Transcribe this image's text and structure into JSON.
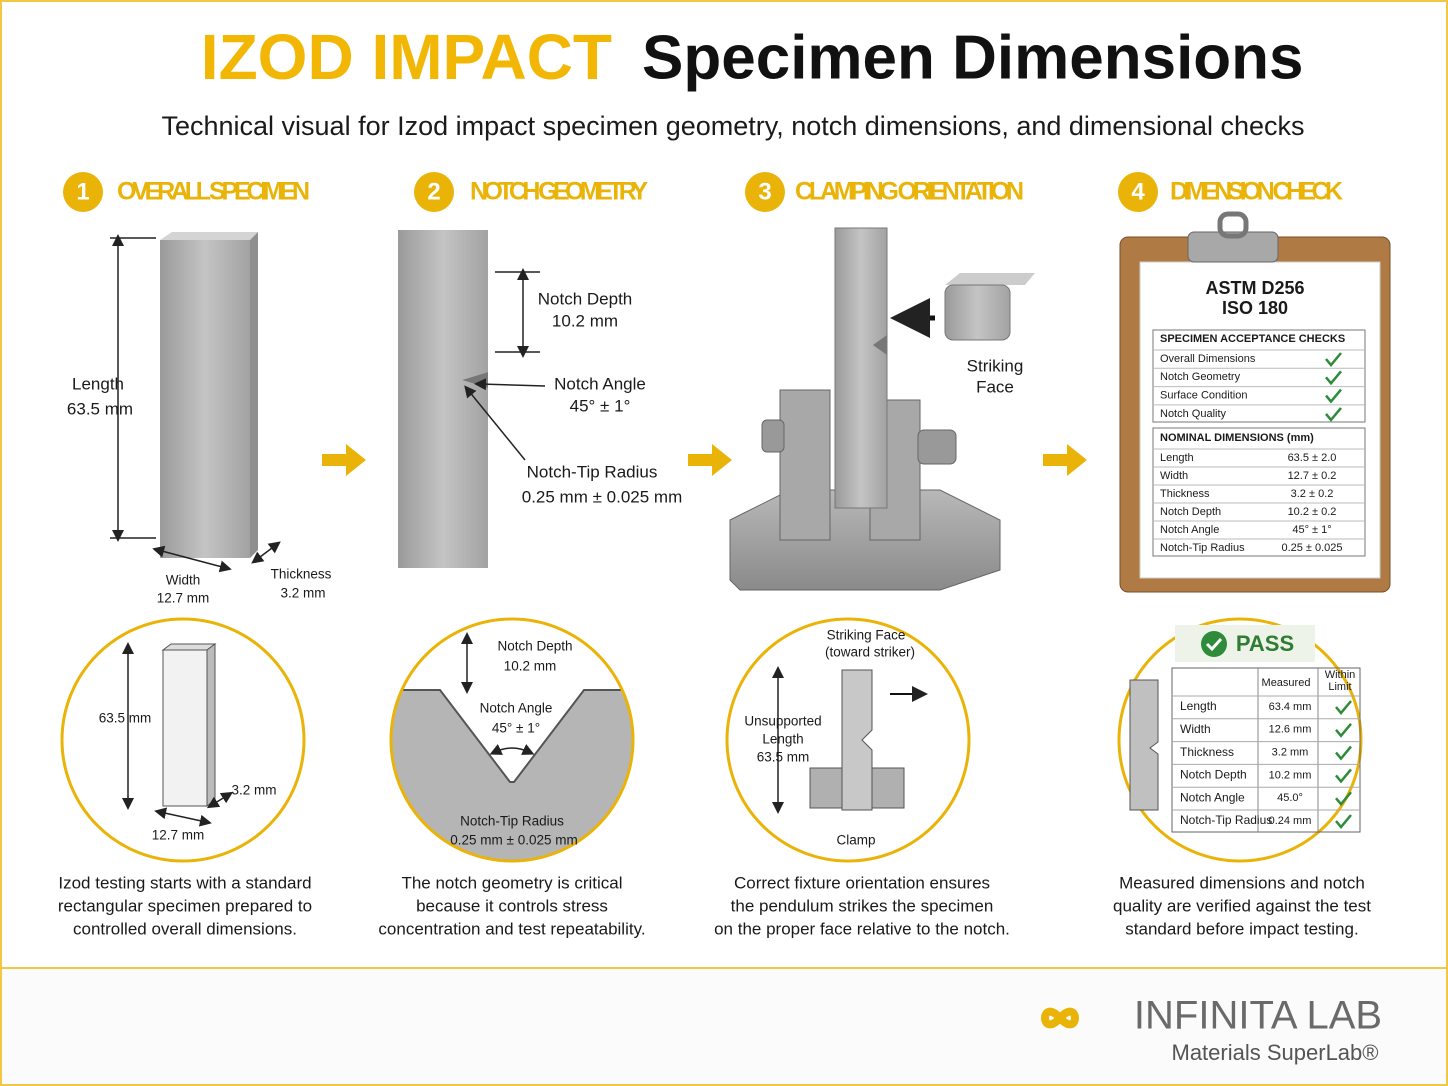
{
  "header": {
    "title_accent": "IZOD IMPACT",
    "title_main": "Specimen Dimensions",
    "subtitle": "Technical visual for Izod impact specimen geometry, notch dimensions, and dimensional checks"
  },
  "steps": [
    {
      "number": "1",
      "title": "OVERALL SPECIMEN",
      "labels": {
        "length": "Length",
        "length_value": "63.5 mm",
        "width": "Width",
        "width_value": "12.7 mm",
        "thickness": "Thickness",
        "thickness_value": "3.2 mm"
      },
      "detail": {
        "length": "63.5 mm",
        "thickness": "3.2 mm",
        "width": "12.7 mm"
      },
      "caption": [
        "Izod testing starts with a standard",
        "rectangular specimen prepared to",
        "controlled overall dimensions."
      ]
    },
    {
      "number": "2",
      "title": "NOTCH GEOMETRY",
      "labels": {
        "depth": "Notch Depth",
        "depth_value": "10.2 mm",
        "angle": "Notch Angle",
        "angle_value": "45° ± 1°",
        "radius": "Notch-Tip Radius",
        "radius_value": "0.25 mm ± 0.025 mm"
      },
      "detail": {
        "depth": "Notch Depth",
        "depth_value": "10.2 mm",
        "angle": "Notch Angle",
        "angle_value": "45° ± 1°",
        "radius": "Notch-Tip Radius",
        "radius_value": "0.25 mm ± 0.025 mm"
      },
      "caption": [
        "The notch geometry is critical",
        "because it controls stress",
        "concentration and test repeatability."
      ]
    },
    {
      "number": "3",
      "title": "CLAMPING ORIENTATION",
      "labels": {
        "striking": "Striking",
        "face": "Face"
      },
      "detail": {
        "striking_face": "Striking Face",
        "toward": "(toward striker)",
        "unsupported": "Unsupported",
        "length": "Length",
        "length_value": "63.5 mm",
        "clamp": "Clamp"
      },
      "caption": [
        "Correct fixture orientation ensures",
        "the pendulum strikes the specimen",
        "on the proper face relative to the notch."
      ]
    },
    {
      "number": "4",
      "title": "DIMENSION CHECK",
      "clipboard": {
        "standard_1": "ASTM D256",
        "standard_2": "ISO 180",
        "checks_title": "SPECIMEN ACCEPTANCE CHECKS",
        "checks": [
          "Overall Dimensions",
          "Notch Geometry",
          "Surface Condition",
          "Notch Quality"
        ],
        "nominal_title": "NOMINAL DIMENSIONS (mm)",
        "nominal": [
          [
            "Length",
            "63.5 ± 2.0"
          ],
          [
            "Width",
            "12.7 ± 0.2"
          ],
          [
            "Thickness",
            "3.2 ± 0.2"
          ],
          [
            "Notch Depth",
            "10.2 ± 0.2"
          ],
          [
            "Notch Angle",
            "45° ± 1°"
          ],
          [
            "Notch-Tip Radius",
            "0.25 ± 0.025"
          ]
        ]
      },
      "detail": {
        "result": "PASS",
        "measured_header": "Measured",
        "within_header_1": "Within",
        "within_header_2": "Limit",
        "rows": [
          [
            "Length",
            "63.4 mm"
          ],
          [
            "Width",
            "12.6 mm"
          ],
          [
            "Thickness",
            "3.2 mm"
          ],
          [
            "Notch Depth",
            "10.2 mm"
          ],
          [
            "Notch Angle",
            "45.0°"
          ],
          [
            "Notch-Tip Radius",
            "0.24 mm"
          ]
        ]
      },
      "caption": [
        "Measured dimensions and notch",
        "quality are verified against the test",
        "standard before impact testing."
      ]
    }
  ],
  "footer": {
    "brand": "INFINITA LAB",
    "tagline": "Materials SuperLab®"
  }
}
